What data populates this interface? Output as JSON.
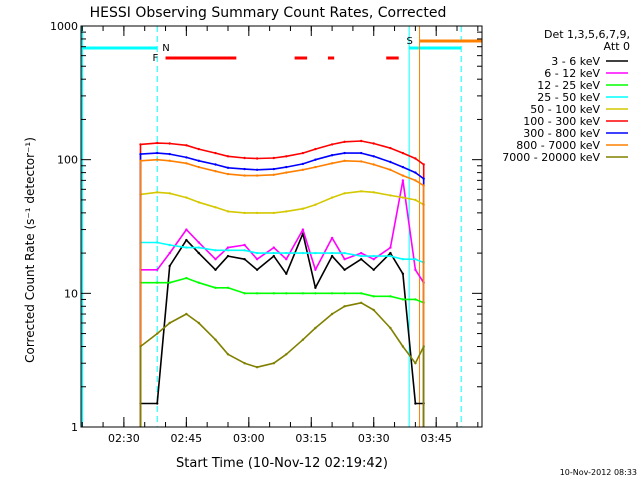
{
  "chart_data": {
    "type": "line",
    "title": "HESSI Observing Summary Count Rates, Corrected",
    "xlabel": "Start Time (10-Nov-12 02:19:42)",
    "ylabel": "Corrected Count Rate (s⁻¹ detector⁻¹)",
    "yscale": "log",
    "ylim": [
      1,
      1000
    ],
    "xlim": [
      "02:19:42",
      "03:56:00"
    ],
    "x_ticks": [
      "02:30",
      "02:45",
      "03:00",
      "03:15",
      "03:30",
      "03:45"
    ],
    "y_ticks": [
      "1",
      "10",
      "100",
      "1000"
    ],
    "legend": {
      "placement": "top-right",
      "header_line1": "Det 1,3,5,6,7,9,",
      "header_line2": "Att 0"
    },
    "footer_date": "10-Nov-2012 08:33",
    "markers": {
      "flare_label": "F",
      "night_label": "N",
      "saa_label": "S",
      "flare_segments": [
        [
          "02:40:00",
          "02:57:00"
        ],
        [
          "03:11:00",
          "03:14:00"
        ],
        [
          "03:19:00",
          "03:20:30"
        ],
        [
          "03:33:00",
          "03:36:00"
        ]
      ],
      "night_line": "02:38:00",
      "day_line": "03:38:30",
      "saa_start": "03:41:00",
      "saa_end": "03:51:00"
    },
    "x": [
      "02:34",
      "02:38",
      "02:41",
      "02:45",
      "02:48",
      "02:52",
      "02:55",
      "02:59",
      "03:02",
      "03:06",
      "03:09",
      "03:13",
      "03:16",
      "03:20",
      "03:23",
      "03:27",
      "03:30",
      "03:34",
      "03:37",
      "03:40",
      "03:42"
    ],
    "series": [
      {
        "name": "3 - 6 keV",
        "color": "#000000",
        "values": [
          1.5,
          1.5,
          16,
          25,
          20,
          15,
          19,
          18,
          15,
          19,
          14,
          28,
          11,
          19,
          15,
          18,
          15,
          20,
          14,
          1.5,
          1.5
        ]
      },
      {
        "name": "6 - 12 keV",
        "color": "#ff00ff",
        "values": [
          15,
          15,
          20,
          30,
          24,
          18,
          22,
          23,
          18,
          22,
          18,
          30,
          15,
          26,
          18,
          20,
          18,
          22,
          70,
          15,
          12
        ]
      },
      {
        "name": "12 - 25 keV",
        "color": "#00ff00",
        "values": [
          12,
          12,
          12,
          13,
          12,
          11,
          11,
          10,
          10,
          10,
          10,
          10,
          10,
          10,
          10,
          10,
          9.5,
          9.5,
          9,
          9,
          8.5
        ]
      },
      {
        "name": "25 - 50 keV",
        "color": "#00ffff",
        "values": [
          24,
          24,
          23,
          22,
          22,
          21,
          21,
          21,
          20,
          20,
          20,
          20,
          20,
          20,
          20,
          19,
          19,
          19,
          18,
          18,
          17
        ]
      },
      {
        "name": "50 - 100 keV",
        "color": "#d4c800",
        "values": [
          55,
          57,
          56,
          52,
          48,
          44,
          41,
          40,
          40,
          40,
          41,
          43,
          46,
          52,
          56,
          58,
          57,
          54,
          52,
          50,
          46
        ]
      },
      {
        "name": "100 - 300 keV",
        "color": "#ff0000",
        "values": [
          130,
          133,
          132,
          128,
          120,
          112,
          106,
          103,
          102,
          103,
          106,
          112,
          120,
          130,
          136,
          138,
          132,
          122,
          112,
          102,
          92
        ]
      },
      {
        "name": "300 - 800 keV",
        "color": "#0000ff",
        "values": [
          110,
          112,
          110,
          104,
          98,
          92,
          87,
          85,
          84,
          85,
          88,
          93,
          100,
          108,
          112,
          112,
          106,
          96,
          88,
          80,
          72
        ]
      },
      {
        "name": "800 - 7000 keV",
        "color": "#ff8000",
        "values": [
          98,
          100,
          98,
          94,
          88,
          82,
          78,
          76,
          76,
          77,
          80,
          84,
          88,
          94,
          98,
          97,
          92,
          84,
          76,
          70,
          64
        ]
      },
      {
        "name": "7000 - 20000 keV",
        "color": "#808000",
        "values": [
          4,
          5,
          6,
          7,
          6,
          4.5,
          3.5,
          3,
          2.8,
          3,
          3.5,
          4.5,
          5.5,
          7,
          8,
          8.5,
          7.5,
          5.5,
          4,
          3,
          4
        ]
      }
    ]
  }
}
